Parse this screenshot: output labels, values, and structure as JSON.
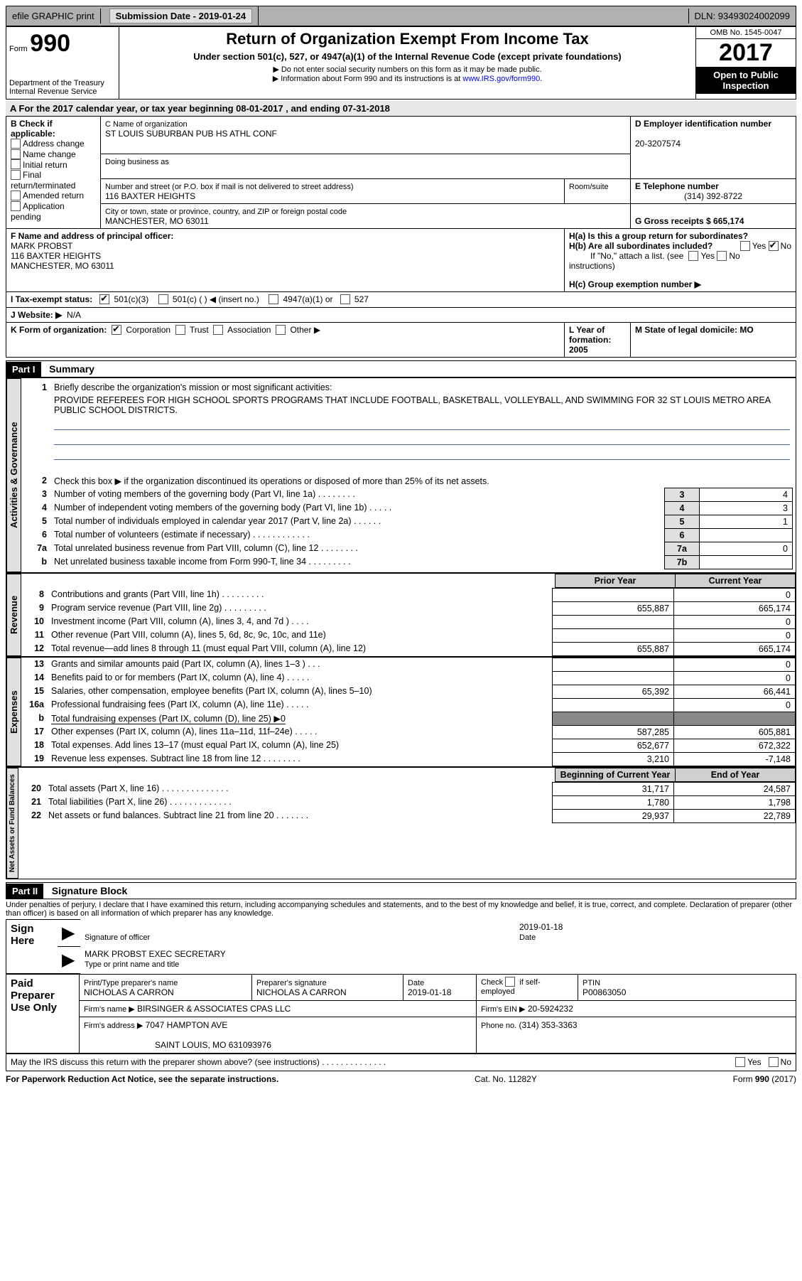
{
  "topbar": {
    "efile": "efile GRAPHIC print",
    "submission": "Submission Date - 2019-01-24",
    "dln": "DLN: 93493024002099"
  },
  "header": {
    "form_label": "Form",
    "form_number": "990",
    "dept": "Department of the Treasury",
    "irs": "Internal Revenue Service",
    "title": "Return of Organization Exempt From Income Tax",
    "subtitle": "Under section 501(c), 527, or 4947(a)(1) of the Internal Revenue Code (except private foundations)",
    "note1": "▶ Do not enter social security numbers on this form as it may be made public.",
    "note2_a": "▶ Information about Form 990 and its instructions is at ",
    "note2_link": "www.IRS.gov/form990",
    "omb": "OMB No. 1545-0047",
    "year": "2017",
    "open": "Open to Public Inspection"
  },
  "rowA": "A  For the 2017 calendar year, or tax year beginning 08-01-2017    , and ending 07-31-2018",
  "sectionB": {
    "b_label": "B Check if applicable:",
    "addr_change": "Address change",
    "name_change": "Name change",
    "initial": "Initial return",
    "final": "Final return/terminated",
    "amended": "Amended return",
    "pending": "Application pending",
    "c_name_label": "C Name of organization",
    "c_name": "ST LOUIS SUBURBAN PUB HS ATHL CONF",
    "dba_label": "Doing business as",
    "street_label": "Number and street (or P.O. box if mail is not delivered to street address)",
    "room_label": "Room/suite",
    "street": "116 BAXTER HEIGHTS",
    "city_label": "City or town, state or province, country, and ZIP or foreign postal code",
    "city": "MANCHESTER, MO  63011",
    "d_label": "D Employer identification number",
    "d_val": "20-3207574",
    "e_label": "E Telephone number",
    "e_val": "(314) 392-8722",
    "g_label": "G Gross receipts $ 665,174",
    "f_label": "F  Name and address of principal officer:",
    "f_name": "MARK PROBST",
    "f_addr1": "116 BAXTER HEIGHTS",
    "f_addr2": "MANCHESTER, MO  63011",
    "ha_label": "H(a)  Is this a group return for subordinates?",
    "hb_label": "H(b)  Are all subordinates included?",
    "hb_note": "If \"No,\" attach a list. (see instructions)",
    "hc_label": "H(c)  Group exemption number ▶",
    "yes": "Yes",
    "no": "No"
  },
  "rowI": {
    "label": "I  Tax-exempt status:",
    "a": "501(c)(3)",
    "b": "501(c) (   ) ◀ (insert no.)",
    "c": "4947(a)(1) or",
    "d": "527"
  },
  "rowJ": {
    "label": "J  Website: ▶",
    "val": "N/A"
  },
  "rowK": {
    "label": "K Form of organization:",
    "corp": "Corporation",
    "trust": "Trust",
    "assoc": "Association",
    "other": "Other ▶"
  },
  "rowL": {
    "label": "L Year of formation: 2005"
  },
  "rowM": {
    "label": "M State of legal domicile: MO"
  },
  "part1": {
    "header": "Part I",
    "title": "Summary",
    "q1": "Briefly describe the organization's mission or most significant activities:",
    "mission": "PROVIDE REFEREES FOR HIGH SCHOOL SPORTS PROGRAMS THAT INCLUDE FOOTBALL, BASKETBALL, VOLLEYBALL, AND SWIMMING FOR 32 ST LOUIS METRO AREA PUBLIC SCHOOL DISTRICTS.",
    "side_ag": "Activities & Governance",
    "side_rev": "Revenue",
    "side_exp": "Expenses",
    "side_na": "Net Assets or Fund Balances",
    "lines_ag": [
      {
        "n": "2",
        "t": "Check this box ▶       if the organization discontinued its operations or disposed of more than 25% of its net assets."
      },
      {
        "n": "3",
        "t": "Number of voting members of the governing body (Part VI, line 1a)   .     .     .     .     .     .     .     .",
        "box": "3",
        "v": "4"
      },
      {
        "n": "4",
        "t": "Number of independent voting members of the governing body (Part VI, line 1b)   .     .     .     .     .",
        "box": "4",
        "v": "3"
      },
      {
        "n": "5",
        "t": "Total number of individuals employed in calendar year 2017 (Part V, line 2a)   .     .     .     .     .     .",
        "box": "5",
        "v": "1"
      },
      {
        "n": "6",
        "t": "Total number of volunteers (estimate if necessary)   .     .     .     .     .     .     .     .     .     .     .     .",
        "box": "6",
        "v": ""
      },
      {
        "n": "7a",
        "t": "Total unrelated business revenue from Part VIII, column (C), line 12   .     .     .     .     .     .     .     .",
        "box": "7a",
        "v": "0"
      },
      {
        "n": "b",
        "t": "Net unrelated business taxable income from Form 990-T, line 34   .     .     .     .     .     .     .     .     .",
        "box": "7b",
        "v": ""
      }
    ],
    "prior_label": "Prior Year",
    "current_label": "Current Year",
    "begin_label": "Beginning of Current Year",
    "end_label": "End of Year",
    "lines_rev": [
      {
        "n": "8",
        "t": "Contributions and grants (Part VIII, line 1h)   .     .     .     .     .     .     .     .     .",
        "p": "",
        "c": "0"
      },
      {
        "n": "9",
        "t": "Program service revenue (Part VIII, line 2g)   .     .     .     .     .     .     .     .     .",
        "p": "655,887",
        "c": "665,174"
      },
      {
        "n": "10",
        "t": "Investment income (Part VIII, column (A), lines 3, 4, and 7d )   .     .     .     .",
        "p": "",
        "c": "0"
      },
      {
        "n": "11",
        "t": "Other revenue (Part VIII, column (A), lines 5, 6d, 8c, 9c, 10c, and 11e)",
        "p": "",
        "c": "0"
      },
      {
        "n": "12",
        "t": "Total revenue—add lines 8 through 11 (must equal Part VIII, column (A), line 12)",
        "p": "655,887",
        "c": "665,174"
      }
    ],
    "lines_exp": [
      {
        "n": "13",
        "t": "Grants and similar amounts paid (Part IX, column (A), lines 1–3 )   .     .     .",
        "p": "",
        "c": "0"
      },
      {
        "n": "14",
        "t": "Benefits paid to or for members (Part IX, column (A), line 4)   .     .     .     .     .",
        "p": "",
        "c": "0"
      },
      {
        "n": "15",
        "t": "Salaries, other compensation, employee benefits (Part IX, column (A), lines 5–10)",
        "p": "65,392",
        "c": "66,441"
      },
      {
        "n": "16a",
        "t": "Professional fundraising fees (Part IX, column (A), line 11e)   .     .     .     .     .",
        "p": "",
        "c": "0"
      },
      {
        "n": "b",
        "t": "Total fundraising expenses (Part IX, column (D), line 25) ▶0",
        "shade": true
      },
      {
        "n": "17",
        "t": "Other expenses (Part IX, column (A), lines 11a–11d, 11f–24e)   .     .     .     .     .",
        "p": "587,285",
        "c": "605,881"
      },
      {
        "n": "18",
        "t": "Total expenses. Add lines 13–17 (must equal Part IX, column (A), line 25)",
        "p": "652,677",
        "c": "672,322"
      },
      {
        "n": "19",
        "t": "Revenue less expenses. Subtract line 18 from line 12   .     .     .     .     .     .     .     .",
        "p": "3,210",
        "c": "-7,148"
      }
    ],
    "lines_na": [
      {
        "n": "20",
        "t": "Total assets (Part X, line 16)   .     .     .     .     .     .     .     .     .     .     .     .     .     .",
        "p": "31,717",
        "c": "24,587"
      },
      {
        "n": "21",
        "t": "Total liabilities (Part X, line 26)   .     .     .     .     .     .     .     .     .     .     .     .     .",
        "p": "1,780",
        "c": "1,798"
      },
      {
        "n": "22",
        "t": "Net assets or fund balances. Subtract line 21 from line 20   .     .     .     .     .     .     .",
        "p": "29,937",
        "c": "22,789"
      }
    ]
  },
  "part2": {
    "header": "Part II",
    "title": "Signature Block",
    "declaration": "Under penalties of perjury, I declare that I have examined this return, including accompanying schedules and statements, and to the best of my knowledge and belief, it is true, correct, and complete. Declaration of preparer (other than officer) is based on all information of which preparer has any knowledge.",
    "sign_here": "Sign Here",
    "sig_officer": "Signature of officer",
    "date": "Date",
    "date_val": "2019-01-18",
    "name_title": "MARK PROBST EXEC SECRETARY",
    "type_label": "Type or print name and title",
    "paid": "Paid Preparer Use Only",
    "prep_name_label": "Print/Type preparer's name",
    "prep_name": "NICHOLAS A CARRON",
    "prep_sig_label": "Preparer's signature",
    "prep_sig": "NICHOLAS A CARRON",
    "prep_date_label": "Date",
    "prep_date": "2019-01-18",
    "check_self": "Check        if self-employed",
    "ptin_label": "PTIN",
    "ptin": "P00863050",
    "firm_name_label": "Firm's name      ▶",
    "firm_name": "BIRSINGER & ASSOCIATES CPAS LLC",
    "firm_ein_label": "Firm's EIN ▶",
    "firm_ein": "20-5924232",
    "firm_addr_label": "Firm's address ▶",
    "firm_addr": "7047 HAMPTON AVE",
    "firm_city": "SAINT LOUIS, MO  631093976",
    "phone_label": "Phone no.",
    "phone": "(314) 353-3363",
    "may_irs": "May the IRS discuss this return with the preparer shown above? (see instructions)   .     .     .     .     .     .     .     .     .     .     .     .     .     ."
  },
  "footer": {
    "left": "For Paperwork Reduction Act Notice, see the separate instructions.",
    "mid": "Cat. No. 11282Y",
    "right": "Form 990 (2017)"
  }
}
